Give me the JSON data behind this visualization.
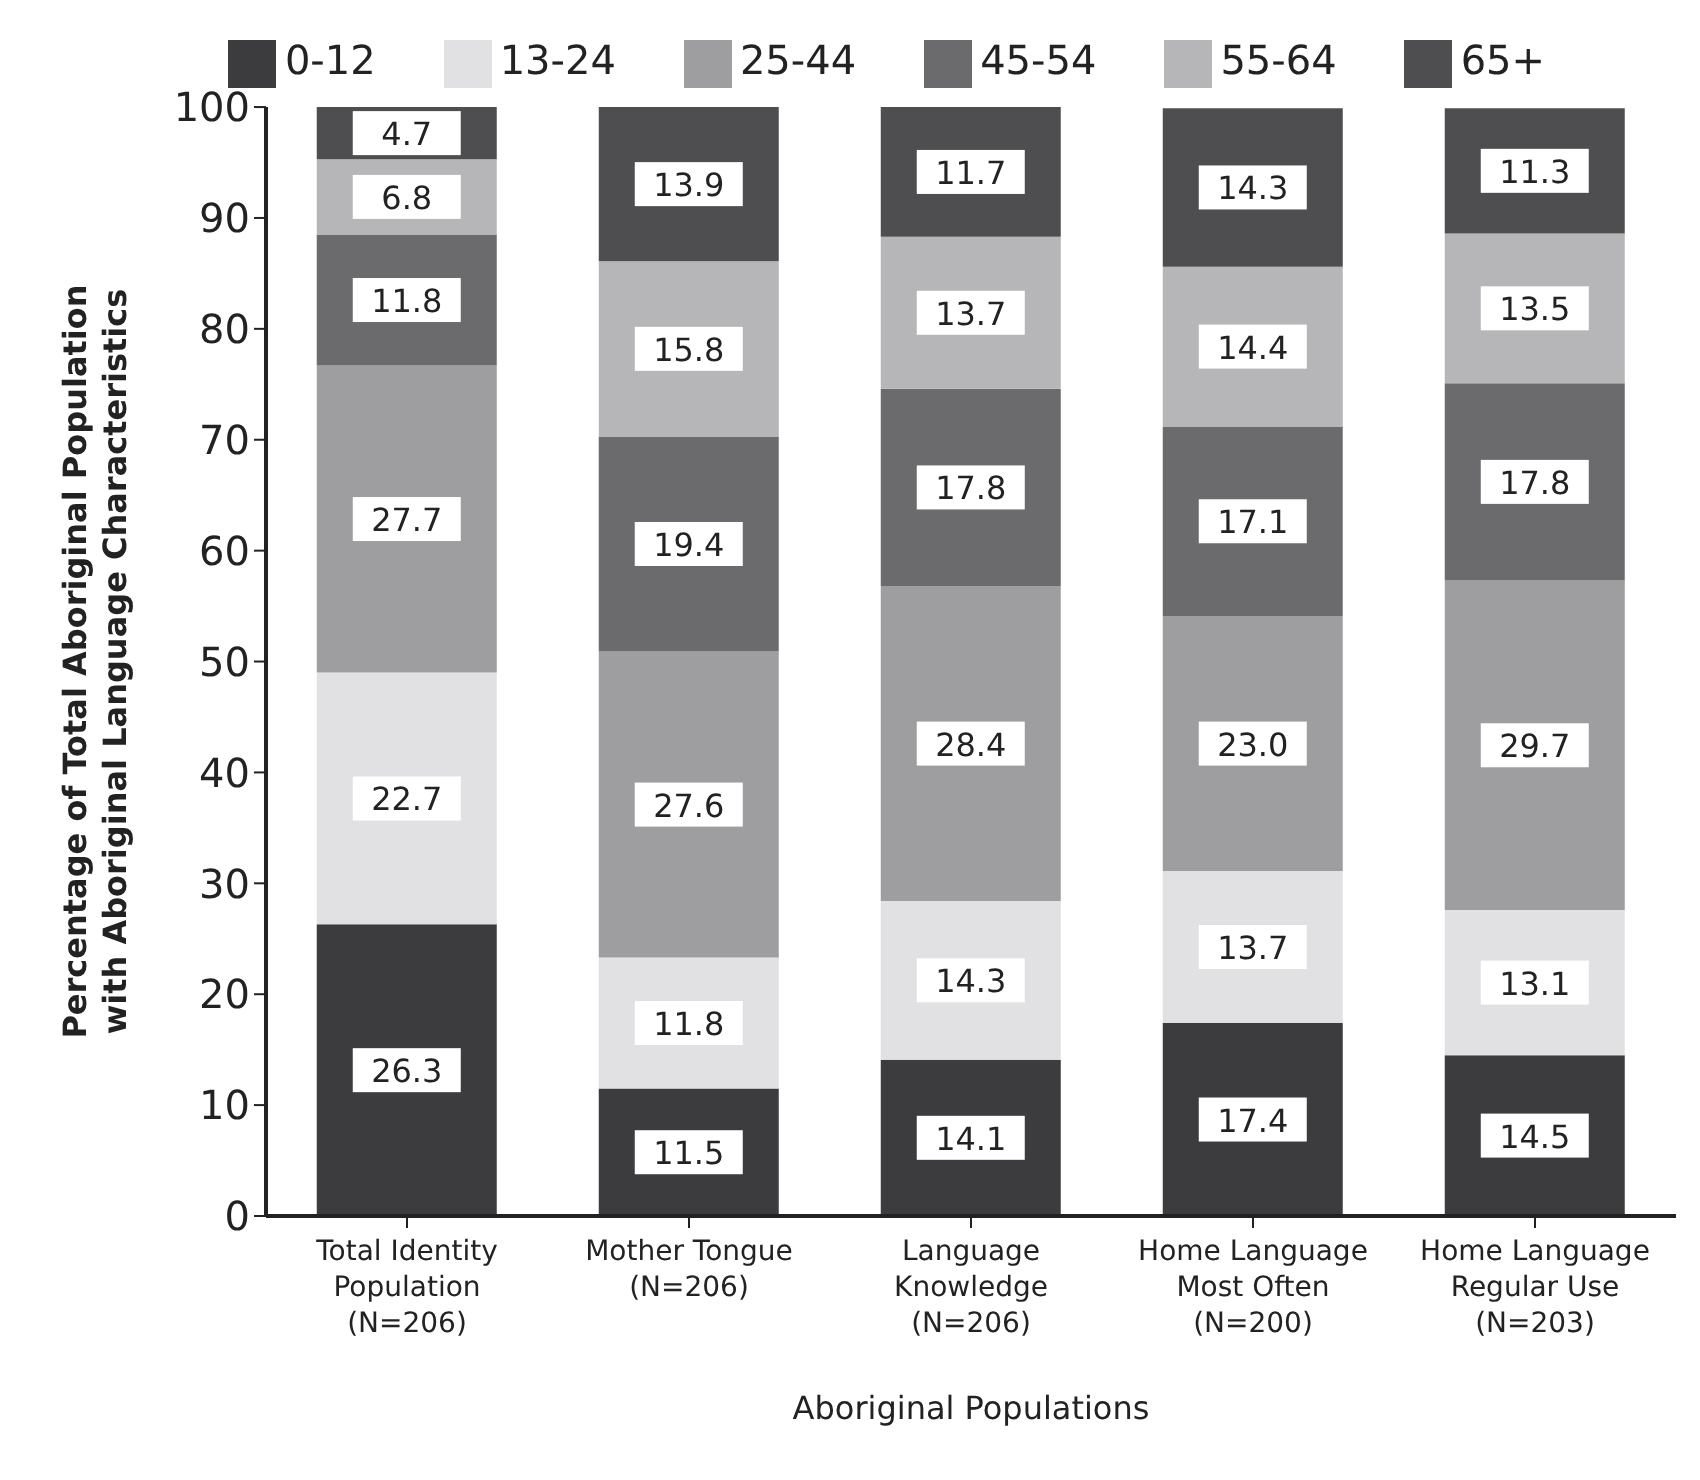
{
  "chart_data": {
    "type": "bar",
    "stacked": true,
    "xlabel": "Aboriginal Populations",
    "ylabel": "Percentage of Total Aboriginal Population with Aboriginal Language Characteristics",
    "categories": [
      "Total Identity\nPopulation\n(N=206)",
      "Mother Tongue\n(N=206)",
      "Language\nKnowledge\n(N=206)",
      "Home Language\nMost Often\n(N=200)",
      "Home Language\nRegular Use\n(N=203)"
    ],
    "series": [
      {
        "name": "0-12",
        "color": "#3c3c3e",
        "values": [
          26.3,
          11.5,
          14.1,
          17.4,
          14.5
        ],
        "value_labels": [
          "26.3",
          "11.5",
          "14.1",
          "17.4",
          "14.5"
        ]
      },
      {
        "name": "13-24",
        "color": "#e1e1e3",
        "values": [
          22.7,
          11.8,
          14.3,
          13.7,
          13.1
        ],
        "value_labels": [
          "22.7",
          "11.8",
          "14.3",
          "13.7",
          "13.1"
        ]
      },
      {
        "name": "25-44",
        "color": "#9e9ea0",
        "values": [
          27.7,
          27.6,
          28.4,
          23.0,
          29.7
        ],
        "value_labels": [
          "27.7",
          "27.6",
          "28.4",
          "23.0",
          "29.7"
        ]
      },
      {
        "name": "45-54",
        "color": "#6b6b6d",
        "values": [
          11.8,
          19.4,
          17.8,
          17.1,
          17.8
        ],
        "value_labels": [
          "11.8",
          "19.4",
          "17.8",
          "17.1",
          "17.8"
        ]
      },
      {
        "name": "55-64",
        "color": "#b6b6b8",
        "values": [
          6.8,
          15.8,
          13.7,
          14.4,
          13.5
        ],
        "value_labels": [
          "6.8",
          "15.8",
          "13.7",
          "14.4",
          "13.5"
        ]
      },
      {
        "name": "65+",
        "color": "#4e4e50",
        "values": [
          4.7,
          13.9,
          11.7,
          14.3,
          11.3
        ],
        "value_labels": [
          "4.7",
          "13.9",
          "11.7",
          "14.3",
          "11.3"
        ]
      }
    ],
    "ylim": [
      0,
      100
    ],
    "yticks": [
      0,
      10,
      20,
      30,
      40,
      50,
      60,
      70,
      80,
      90,
      100
    ],
    "legend": "top"
  }
}
